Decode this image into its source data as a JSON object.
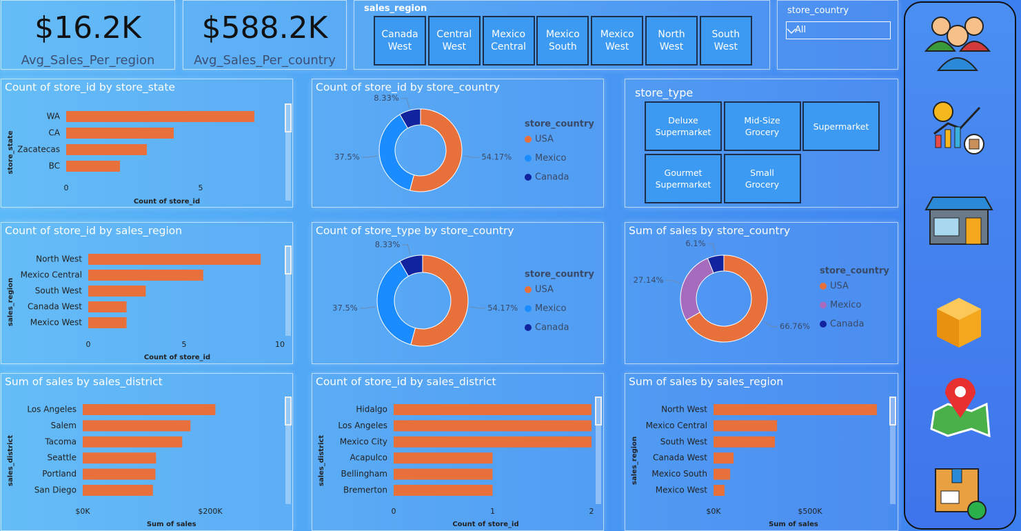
{
  "kpis": [
    {
      "value": "$16.2K",
      "label": "Avg_Sales_Per_region"
    },
    {
      "value": "$588.2K",
      "label": "Avg_Sales_Per_country"
    }
  ],
  "slicers": {
    "sales_region": {
      "title": "sales_region",
      "items": [
        "Canada West",
        "Central West",
        "Mexico Central",
        "Mexico South",
        "Mexico West",
        "North West",
        "South West"
      ]
    },
    "store_country": {
      "title": "store_country",
      "selected": "All"
    },
    "store_type": {
      "title": "store_type",
      "items": [
        "Deluxe Supermarket",
        "Mid-Size Grocery",
        "Supermarket",
        "Gourmet Supermarket",
        "Small Grocery"
      ]
    }
  },
  "chart_data": [
    {
      "type": "bar",
      "title": "Count of store_id by store_state",
      "categories": [
        "WA",
        "CA",
        "Zacatecas",
        "BC"
      ],
      "values": [
        7,
        4,
        3,
        2
      ],
      "color": "#e8703a",
      "xlim": [
        0,
        8
      ],
      "xticks": [
        0,
        5
      ],
      "xlabel": "Count of store_id",
      "ylabel": "store_state",
      "grid": false
    },
    {
      "type": "pie",
      "title": "Count of store_id by store_country",
      "legend_title": "store_country",
      "categories": [
        "USA",
        "Mexico",
        "Canada"
      ],
      "values": [
        54.17,
        37.5,
        8.33
      ],
      "value_labels": [
        "54.17%",
        "37.5%",
        "8.33%"
      ],
      "colors": [
        "#e8703a",
        "#1a8cff",
        "#12239e"
      ]
    },
    {
      "type": "bar",
      "title": "Count of store_id by sales_region",
      "categories": [
        "North West",
        "Mexico Central",
        "South West",
        "Canada West",
        "Mexico West"
      ],
      "values": [
        9,
        6,
        3,
        2,
        2
      ],
      "color": "#e8703a",
      "xlim": [
        0,
        10
      ],
      "xticks": [
        0,
        5,
        10
      ],
      "xlabel": "Count of store_id",
      "ylabel": "sales_region",
      "grid": false
    },
    {
      "type": "pie",
      "title": "Count of store_type by store_country",
      "legend_title": "store_country",
      "categories": [
        "USA",
        "Mexico",
        "Canada"
      ],
      "values": [
        54.17,
        37.5,
        8.33
      ],
      "value_labels": [
        "54.17%",
        "37.5%",
        "8.33%"
      ],
      "colors": [
        "#e8703a",
        "#1a8cff",
        "#12239e"
      ]
    },
    {
      "type": "pie",
      "title": "Sum of sales by store_country",
      "legend_title": "store_country",
      "categories": [
        "USA",
        "Mexico",
        "Canada"
      ],
      "values": [
        66.76,
        27.14,
        6.1
      ],
      "value_labels": [
        "66.76%",
        "27.14%",
        "6.1%"
      ],
      "colors": [
        "#e8703a",
        "#a66bbd",
        "#12239e"
      ]
    },
    {
      "type": "bar",
      "title": "Sum of sales by sales_district",
      "categories": [
        "Los Angeles",
        "Salem",
        "Tacoma",
        "Seattle",
        "Portland",
        "San Diego"
      ],
      "values": [
        208000,
        169000,
        156000,
        115000,
        114000,
        110000
      ],
      "color": "#e8703a",
      "xlim": [
        0,
        300000
      ],
      "xticks": [
        {
          "value": 0,
          "label": "$0K"
        },
        {
          "value": 200000,
          "label": "$200K"
        }
      ],
      "xlabel": "Sum of sales",
      "ylabel": "sales_district",
      "grid": false
    },
    {
      "type": "bar",
      "title": "Count of store_id by sales_district",
      "categories": [
        "Hidalgo",
        "Los Angeles",
        "Mexico City",
        "Acapulco",
        "Bellingham",
        "Bremerton"
      ],
      "values": [
        2,
        2,
        2,
        1,
        1,
        1
      ],
      "color": "#e8703a",
      "xlim": [
        0,
        2
      ],
      "xticks": [
        0,
        1,
        2
      ],
      "xlabel": "Count of store_id",
      "ylabel": "sales_district",
      "grid": false
    },
    {
      "type": "bar",
      "title": "Sum of sales by sales_region",
      "categories": [
        "North West",
        "Mexico Central",
        "South West",
        "Canada West",
        "Mexico South",
        "Mexico West"
      ],
      "values": [
        846000,
        329000,
        318000,
        104000,
        86000,
        57000
      ],
      "color": "#e8703a",
      "xlim": [
        0,
        900000
      ],
      "xticks": [
        {
          "value": 0,
          "label": "$0K"
        },
        {
          "value": 500000,
          "label": "$500K"
        }
      ],
      "xlabel": "Sum of sales",
      "ylabel": "sales_region",
      "grid": false
    }
  ]
}
